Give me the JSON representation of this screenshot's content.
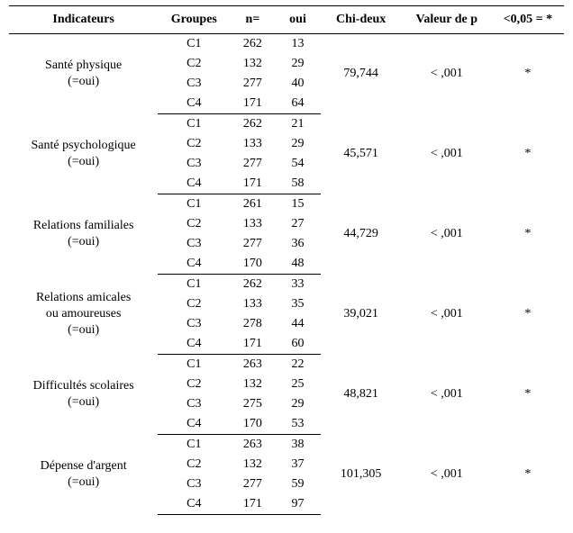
{
  "colors": {
    "text": "#000000",
    "background": "#ffffff",
    "border": "#000000"
  },
  "typography": {
    "font_family": "Times New Roman",
    "header_fontsize_pt": 11,
    "cell_fontsize_pt": 11,
    "header_weight": "bold",
    "cell_weight": "normal"
  },
  "table": {
    "headers": {
      "indicateurs": "Indicateurs",
      "groupes": "Groupes",
      "n": "n=",
      "oui": "oui",
      "chi": "Chi-deux",
      "p": "Valeur de p",
      "sig": "<0,05 = *"
    },
    "sections": [
      {
        "indicator_line1": "Santé physique",
        "indicator_line2": "(=oui)",
        "chi": "79,744",
        "p": "< ,001",
        "sig": "*",
        "rows": [
          {
            "group": "C1",
            "n": "262",
            "oui": "13"
          },
          {
            "group": "C2",
            "n": "132",
            "oui": "29"
          },
          {
            "group": "C3",
            "n": "277",
            "oui": "40"
          },
          {
            "group": "C4",
            "n": "171",
            "oui": "64"
          }
        ]
      },
      {
        "indicator_line1": "Santé psychologique",
        "indicator_line2": "(=oui)",
        "chi": "45,571",
        "p": "< ,001",
        "sig": "*",
        "rows": [
          {
            "group": "C1",
            "n": "262",
            "oui": "21"
          },
          {
            "group": "C2",
            "n": "133",
            "oui": "29"
          },
          {
            "group": "C3",
            "n": "277",
            "oui": "54"
          },
          {
            "group": "C4",
            "n": "171",
            "oui": "58"
          }
        ]
      },
      {
        "indicator_line1": "Relations familiales",
        "indicator_line2": "(=oui)",
        "chi": "44,729",
        "p": "< ,001",
        "sig": "*",
        "rows": [
          {
            "group": "C1",
            "n": "261",
            "oui": "15"
          },
          {
            "group": "C2",
            "n": "133",
            "oui": "27"
          },
          {
            "group": "C3",
            "n": "277",
            "oui": "36"
          },
          {
            "group": "C4",
            "n": "170",
            "oui": "48"
          }
        ]
      },
      {
        "indicator_line1": "Relations amicales",
        "indicator_line2": "ou amoureuses",
        "indicator_line3": "(=oui)",
        "chi": "39,021",
        "p": "< ,001",
        "sig": "*",
        "rows": [
          {
            "group": "C1",
            "n": "262",
            "oui": "33"
          },
          {
            "group": "C2",
            "n": "133",
            "oui": "35"
          },
          {
            "group": "C3",
            "n": "278",
            "oui": "44"
          },
          {
            "group": "C4",
            "n": "171",
            "oui": "60"
          }
        ]
      },
      {
        "indicator_line1": "Difficultés scolaires",
        "indicator_line2": "(=oui)",
        "chi": "48,821",
        "p": "< ,001",
        "sig": "*",
        "rows": [
          {
            "group": "C1",
            "n": "263",
            "oui": "22"
          },
          {
            "group": "C2",
            "n": "132",
            "oui": "25"
          },
          {
            "group": "C3",
            "n": "275",
            "oui": "29"
          },
          {
            "group": "C4",
            "n": "170",
            "oui": "53"
          }
        ]
      },
      {
        "indicator_line1": "Dépense d'argent",
        "indicator_line2": "(=oui)",
        "chi": "101,305",
        "p": "< ,001",
        "sig": "*",
        "rows": [
          {
            "group": "C1",
            "n": "263",
            "oui": "38"
          },
          {
            "group": "C2",
            "n": "132",
            "oui": "37"
          },
          {
            "group": "C3",
            "n": "277",
            "oui": "59"
          },
          {
            "group": "C4",
            "n": "171",
            "oui": "97"
          }
        ]
      }
    ]
  }
}
